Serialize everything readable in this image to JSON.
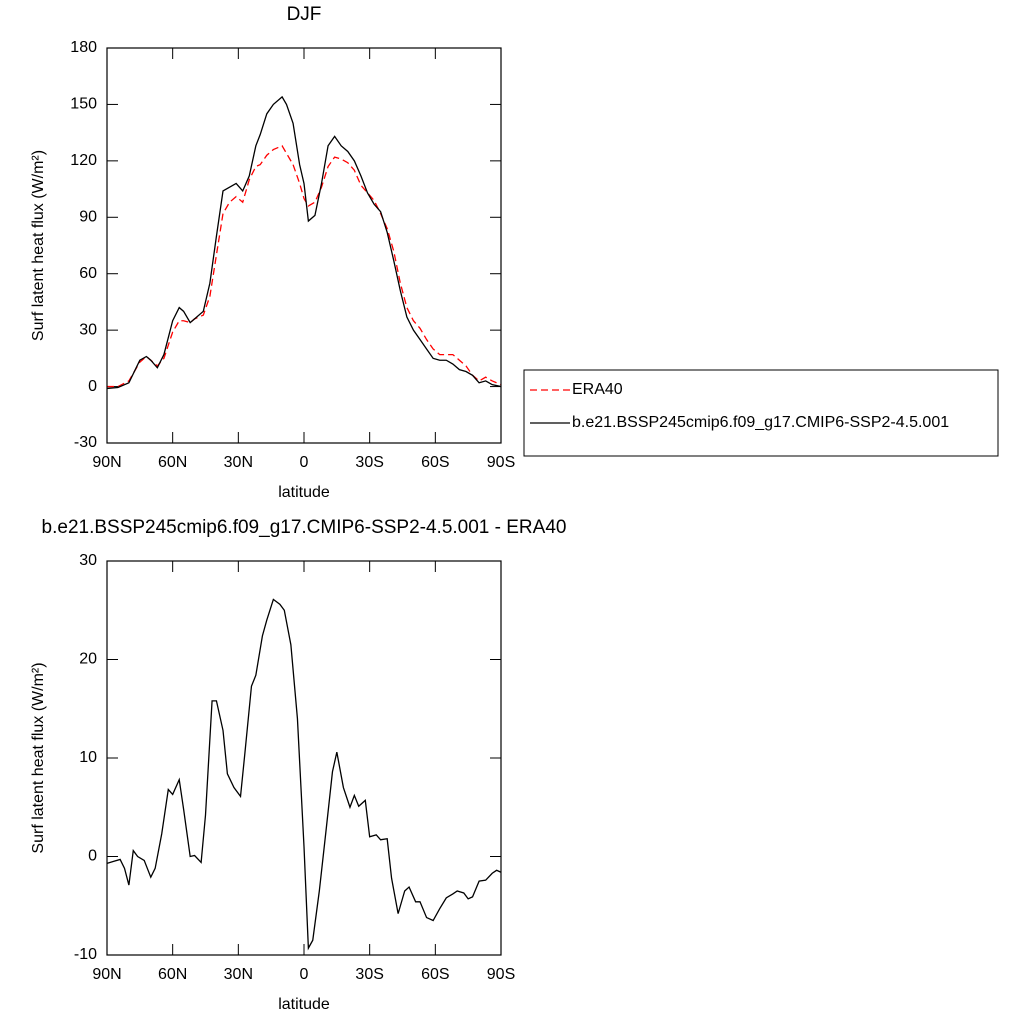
{
  "chart_data": [
    {
      "type": "line",
      "title": "DJF",
      "xlabel": "latitude",
      "ylabel": "Surf latent heat flux (W/m²)",
      "x": [
        90,
        85,
        80,
        75,
        72,
        70,
        67,
        64,
        60,
        57,
        55,
        52,
        50,
        46,
        43,
        40,
        37,
        34,
        31,
        28,
        25,
        22,
        20,
        17,
        14,
        10,
        8,
        5,
        2,
        0,
        -2,
        -5,
        -8,
        -11,
        -14,
        -17,
        -20,
        -23,
        -26,
        -29,
        -32,
        -35,
        -38,
        -41,
        -44,
        -47,
        -50,
        -53,
        -56,
        -59,
        -62,
        -65,
        -68,
        -71,
        -74,
        -77,
        -80,
        -83,
        -86,
        -90
      ],
      "series": [
        {
          "name": "ERA40",
          "color": "#ff0000",
          "dash": true,
          "values": [
            0,
            0,
            3,
            13,
            16,
            14,
            11,
            15,
            29,
            35,
            35,
            34,
            36,
            38,
            48,
            70,
            92,
            98,
            101,
            98,
            110,
            117,
            118,
            123,
            126,
            128,
            124,
            118,
            108,
            100,
            96,
            98,
            106,
            117,
            122,
            121,
            119,
            115,
            107,
            103,
            99,
            92,
            84,
            72,
            55,
            42,
            35,
            31,
            25,
            20,
            17,
            17,
            17,
            14,
            11,
            6,
            3,
            5,
            3,
            1
          ]
        },
        {
          "name": "b.e21.BSSP245cmip6.f09_g17.CMIP6-SSP2-4.5.001",
          "color": "#000000",
          "dash": false,
          "values": [
            -1,
            -0.5,
            2,
            14,
            16,
            14,
            10,
            17,
            35,
            42,
            40,
            34,
            36,
            40,
            55,
            80,
            104,
            106,
            108,
            104,
            112,
            128,
            134,
            145,
            150,
            154,
            150,
            140,
            118,
            108,
            88,
            91,
            108,
            128,
            133,
            128,
            125,
            120,
            112,
            103,
            97,
            93,
            82,
            67,
            51,
            37,
            30,
            25,
            20,
            15,
            14,
            14,
            12,
            9,
            8,
            6,
            2,
            3,
            1,
            0
          ]
        }
      ],
      "xlim": [
        90,
        -90
      ],
      "xticks": [
        {
          "value": 90,
          "label": "90N"
        },
        {
          "value": 60,
          "label": "60N"
        },
        {
          "value": 30,
          "label": "30N"
        },
        0,
        {
          "value": -30,
          "label": "30S"
        },
        {
          "value": -60,
          "label": "60S"
        },
        {
          "value": -90,
          "label": "90S"
        }
      ],
      "ylim": [
        -30,
        180
      ],
      "yticks": [
        -30,
        0,
        30,
        60,
        90,
        120,
        150,
        180
      ],
      "legend": "right"
    },
    {
      "type": "line",
      "title": "b.e21.BSSP245cmip6.f09_g17.CMIP6-SSP2-4.5.001 - ERA40",
      "xlabel": "latitude",
      "ylabel": "Surf latent heat flux (W/m²)",
      "x": [
        90,
        87,
        84,
        82,
        80,
        78,
        76,
        73,
        70,
        68,
        65,
        62,
        60,
        57,
        55,
        52,
        50,
        47,
        45,
        42,
        40,
        37,
        35,
        32,
        29,
        27,
        24,
        22,
        19,
        17,
        14,
        11,
        9,
        6,
        3,
        0,
        -2,
        -4,
        -7,
        -10,
        -13,
        -15,
        -18,
        -21,
        -23,
        -25,
        -28,
        -30,
        -33,
        -35,
        -38,
        -40,
        -43,
        -46,
        -48,
        -51,
        -53,
        -56,
        -59,
        -62,
        -65,
        -68,
        -70,
        -73,
        -75,
        -77,
        -80,
        -83,
        -86,
        -88,
        -90
      ],
      "values": [
        -0.7,
        -0.5,
        -0.3,
        -1.2,
        -2.9,
        0.6,
        0,
        -0.4,
        -2.1,
        -1.2,
        2.3,
        6.8,
        6.3,
        7.8,
        4.8,
        0,
        0.1,
        -0.6,
        4.2,
        15.8,
        15.8,
        12.8,
        8.4,
        7,
        6.1,
        10.5,
        17.3,
        18.4,
        22.4,
        24,
        26.1,
        25.6,
        25,
        21.5,
        14,
        1,
        -9.3,
        -8.5,
        -3.5,
        2.5,
        8.6,
        10.6,
        7,
        5,
        6.2,
        5.1,
        5.7,
        2,
        2.2,
        1.7,
        1.8,
        -2.2,
        -5.8,
        -3.5,
        -3.1,
        -4.6,
        -4.6,
        -6.2,
        -6.5,
        -5.3,
        -4.2,
        -3.8,
        -3.5,
        -3.7,
        -4.3,
        -4.1,
        -2.5,
        -2.4,
        -1.7,
        -1.4,
        -1.6
      ],
      "color": "#000000",
      "xlim": [
        90,
        -90
      ],
      "xticks": [
        {
          "value": 90,
          "label": "90N"
        },
        {
          "value": 60,
          "label": "60N"
        },
        {
          "value": 30,
          "label": "30N"
        },
        0,
        {
          "value": -30,
          "label": "30S"
        },
        {
          "value": -60,
          "label": "60S"
        },
        {
          "value": -90,
          "label": "90S"
        }
      ],
      "ylim": [
        -10,
        30
      ],
      "yticks": [
        -10,
        0,
        10,
        20,
        30
      ]
    }
  ]
}
